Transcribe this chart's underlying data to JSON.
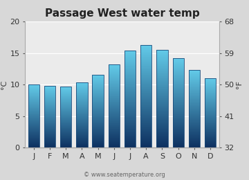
{
  "title": "Passage West water temp",
  "months": [
    "J",
    "F",
    "M",
    "A",
    "M",
    "J",
    "J",
    "A",
    "S",
    "O",
    "N",
    "D"
  ],
  "values_c": [
    10.0,
    9.8,
    9.7,
    10.4,
    11.6,
    13.2,
    15.4,
    16.3,
    15.5,
    14.2,
    12.3,
    11.0
  ],
  "ylim_c": [
    0,
    20
  ],
  "yticks_c": [
    0,
    5,
    10,
    15,
    20
  ],
  "yticks_f": [
    32,
    41,
    50,
    59,
    68
  ],
  "ylabel_left": "°C",
  "ylabel_right": "°F",
  "bar_color_top": "#62cae8",
  "bar_color_bottom": "#0d3060",
  "bar_edge_color": "#1a4a7a",
  "bg_color": "#d8d8d8",
  "plot_bg_color": "#ebebeb",
  "grid_color": "#ffffff",
  "title_fontsize": 11,
  "axis_fontsize": 8,
  "tick_fontsize": 8,
  "watermark": "© www.seatemperature.org",
  "bar_width": 0.7,
  "num_segments": 200
}
